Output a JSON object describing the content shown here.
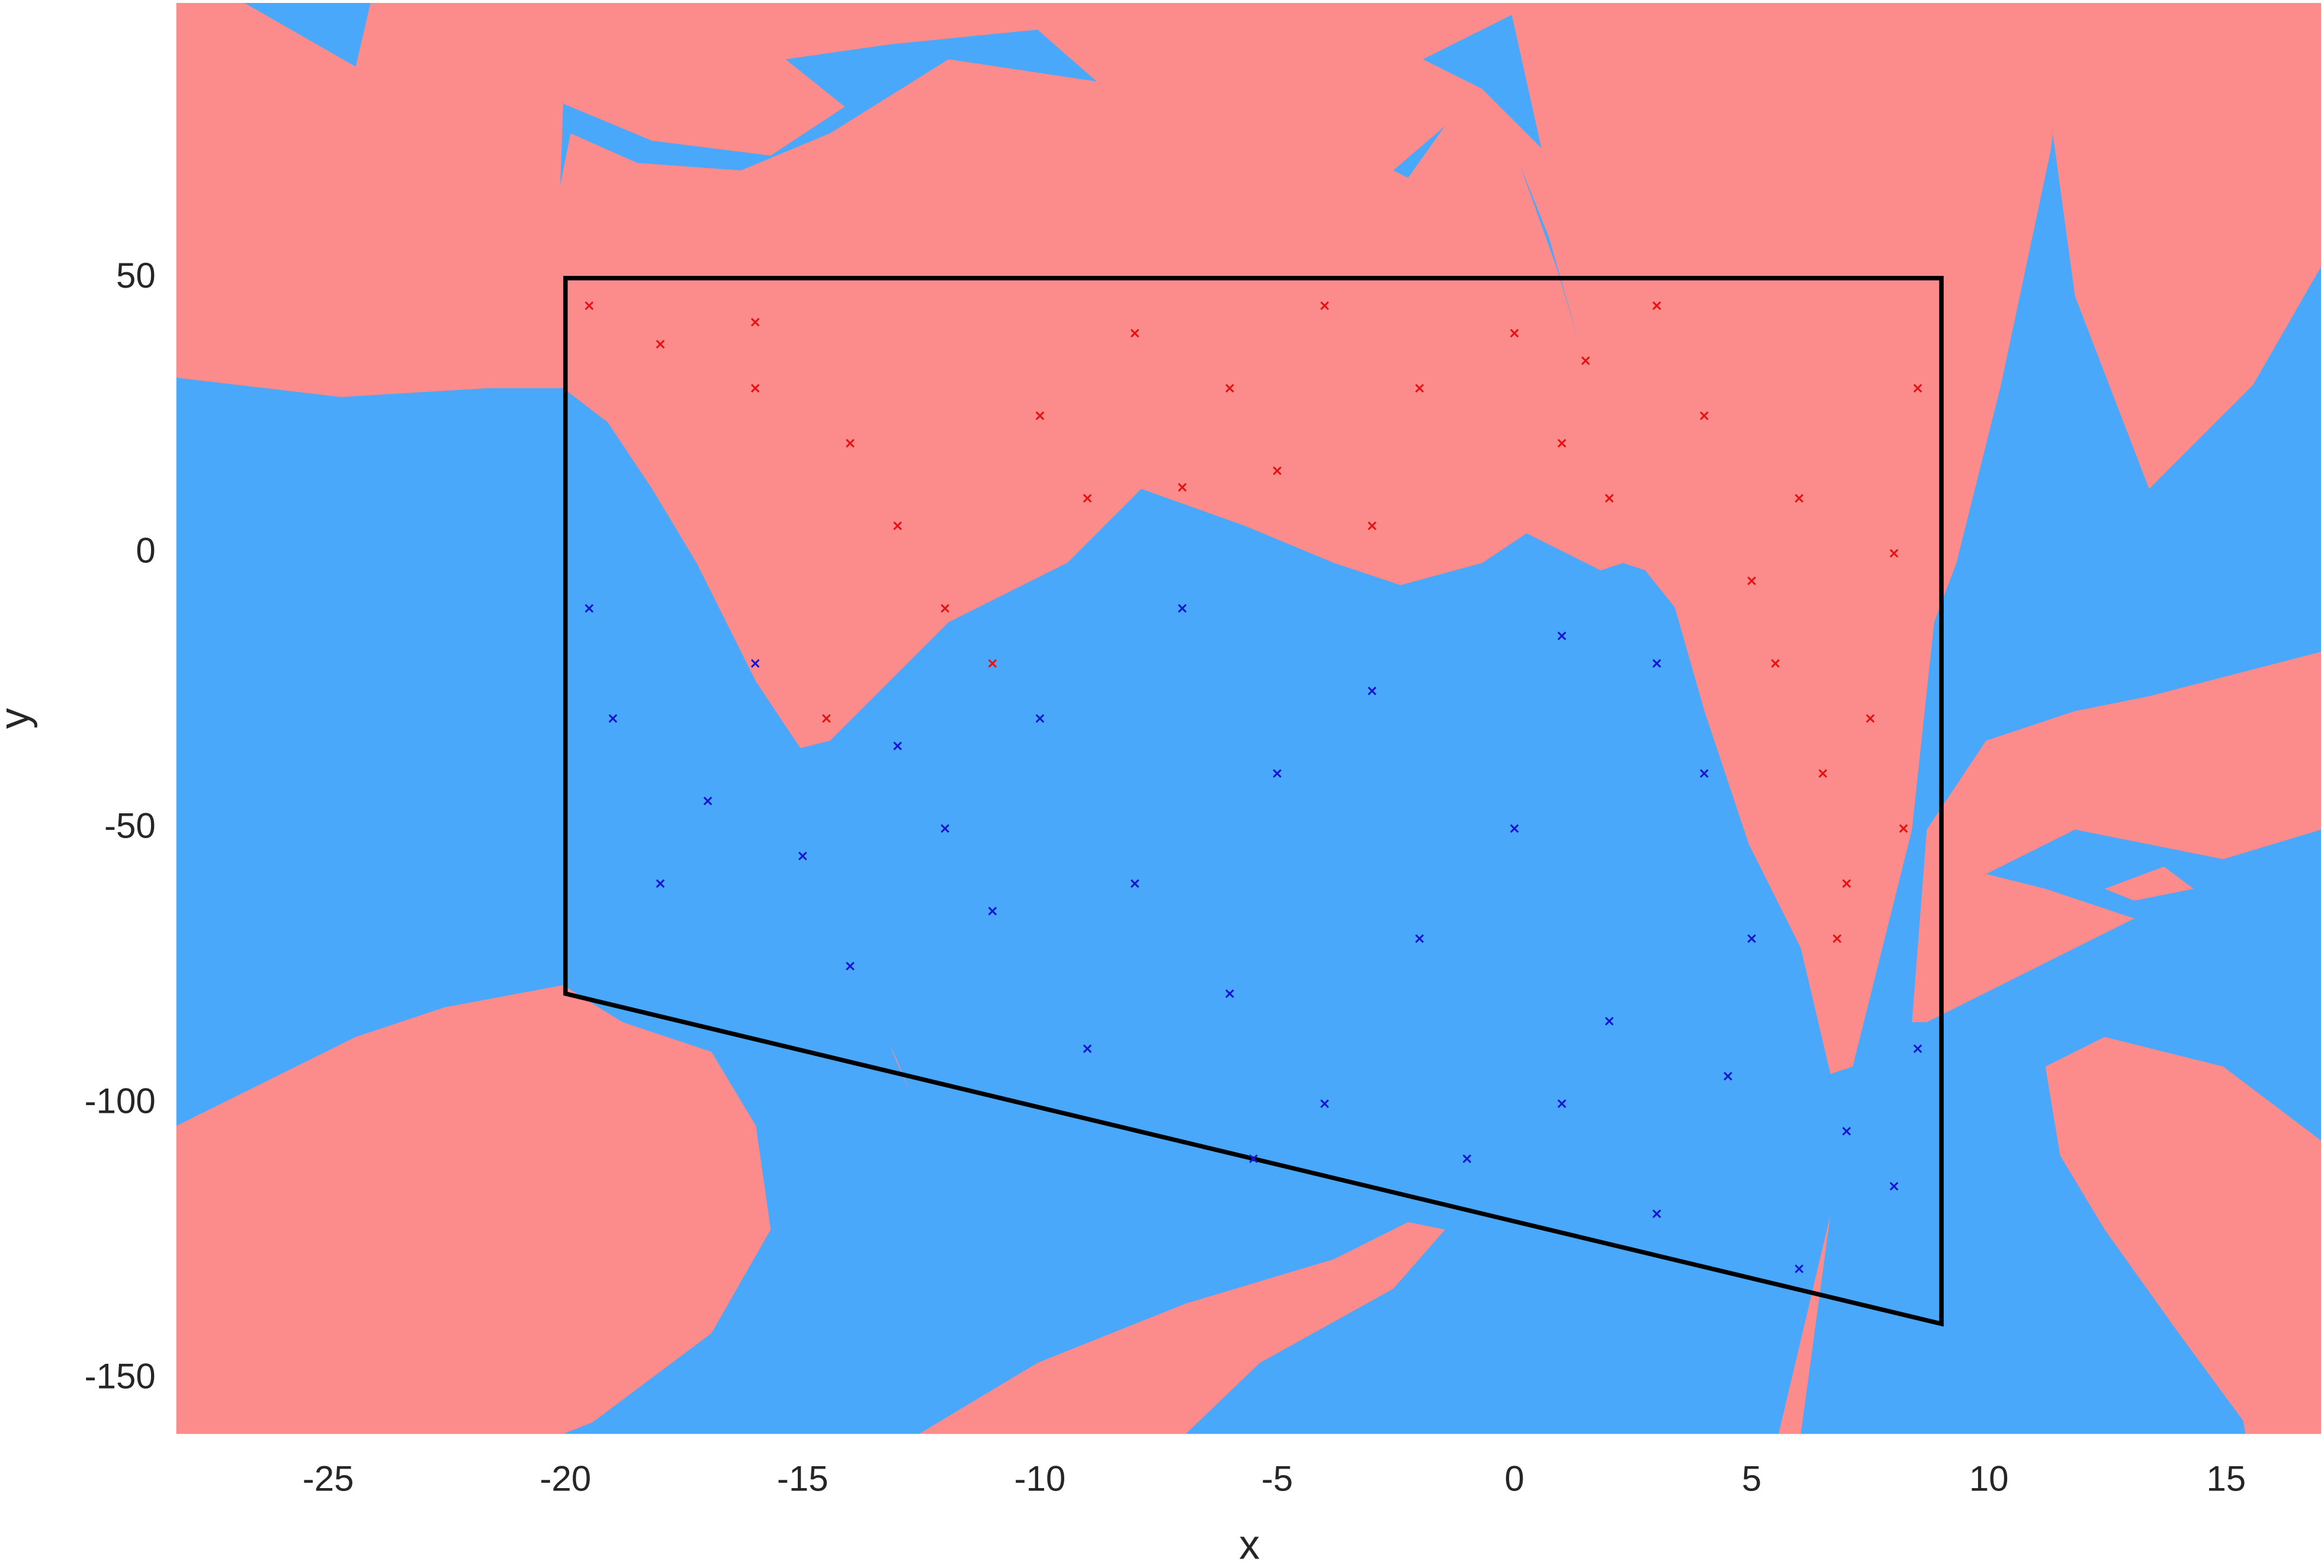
{
  "chart_data": {
    "type": "scatter",
    "xlabel": "x",
    "ylabel": "y",
    "xlim": [
      -28.2,
      17
    ],
    "ylim": [
      -160,
      100
    ],
    "xticks": [
      -25,
      -20,
      -15,
      -10,
      -5,
      0,
      5,
      10,
      15
    ],
    "yticks": [
      -150,
      -100,
      -50,
      0,
      50
    ],
    "grid": false,
    "series": [
      {
        "color": "#e81010",
        "x": [
          -19.5,
          -18,
          -16,
          -14,
          -13,
          -12,
          -11,
          -14.5,
          -10,
          -8,
          -6,
          -5,
          -4,
          -3,
          -2,
          0,
          1,
          2,
          3,
          4,
          5,
          5.5,
          6,
          6.5,
          7,
          7.5,
          8,
          8.5,
          8.2,
          -9,
          -7,
          1.5,
          6.8,
          -16
        ],
        "values": [
          45,
          38,
          30,
          20,
          5,
          -10,
          -20,
          -30,
          25,
          40,
          30,
          15,
          45,
          5,
          30,
          40,
          20,
          10,
          45,
          25,
          -5,
          -20,
          10,
          -40,
          -60,
          -30,
          0,
          30,
          -50,
          10,
          12,
          35,
          -70,
          42
        ]
      },
      {
        "color": "#1414d2",
        "x": [
          -19.5,
          -19,
          -18,
          -17,
          -16,
          -15,
          -14,
          -12,
          -10,
          -9,
          -8,
          -7,
          -6,
          -5,
          -4,
          -3,
          -2,
          -1,
          0,
          1,
          2,
          3,
          4,
          4.5,
          5,
          6,
          7,
          8,
          8.5,
          -11,
          -13,
          3,
          -5.5,
          1
        ],
        "values": [
          -10,
          -30,
          -60,
          -45,
          -20,
          -55,
          -75,
          -50,
          -30,
          -90,
          -60,
          -10,
          -80,
          -40,
          -100,
          -25,
          -70,
          -110,
          -50,
          -15,
          -85,
          -120,
          -40,
          -95,
          -70,
          -130,
          -105,
          -115,
          -90,
          -65,
          -35,
          -20,
          -110,
          -100
        ]
      }
    ],
    "polygon": {
      "color": "#000000",
      "x": [
        -20,
        9,
        9,
        -20
      ],
      "y": [
        50,
        50,
        -140,
        -80
      ]
    }
  }
}
